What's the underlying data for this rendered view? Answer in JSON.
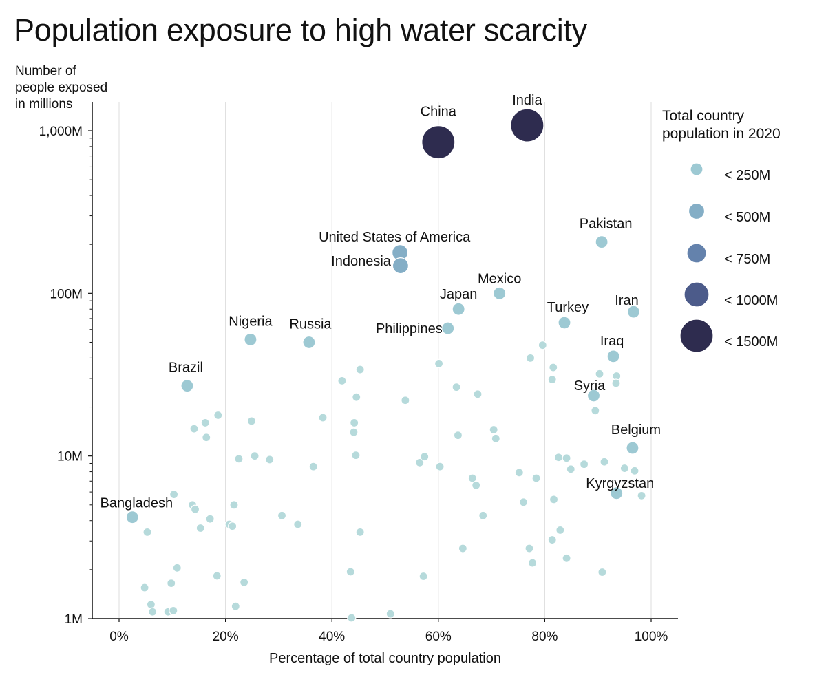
{
  "chart_data": {
    "type": "scatter",
    "title": "Population exposure to high water scarcity",
    "ylabel": [
      "Number of",
      "people exposed",
      "in millions"
    ],
    "xlabel": "Percentage of total country population",
    "x_range": [
      -5,
      105
    ],
    "y_range": [
      1,
      1600
    ],
    "y_scale": "log",
    "grid": "vertical",
    "x_ticks": [
      {
        "value": 0,
        "label": "0%"
      },
      {
        "value": 20,
        "label": "20%"
      },
      {
        "value": 40,
        "label": "40%"
      },
      {
        "value": 60,
        "label": "60%"
      },
      {
        "value": 80,
        "label": "80%"
      },
      {
        "value": 100,
        "label": "100%"
      }
    ],
    "y_ticks": [
      {
        "value": 1,
        "label": "1M"
      },
      {
        "value": 10,
        "label": "10M"
      },
      {
        "value": 100,
        "label": "100M"
      },
      {
        "value": 1000,
        "label": "1,000M"
      }
    ],
    "size_legend": {
      "title": [
        "Total country",
        "population in 2020"
      ],
      "placement": "right",
      "bins": [
        {
          "label": "< 250M",
          "color": "#9dc9d3"
        },
        {
          "label": "< 500M",
          "color": "#84aec6"
        },
        {
          "label": "< 750M",
          "color": "#6482ac"
        },
        {
          "label": "< 1000M",
          "color": "#4c5b8a"
        },
        {
          "label": "< 1500M",
          "color": "#2e2c4f"
        }
      ]
    },
    "labeled_points": [
      {
        "name": "China",
        "x": 60,
        "y": 850,
        "bin": 4
      },
      {
        "name": "India",
        "x": 76.7,
        "y": 1080,
        "bin": 4
      },
      {
        "name": "United States of America",
        "x": 52.8,
        "y": 178,
        "bin": 1
      },
      {
        "name": "Indonesia",
        "x": 52.9,
        "y": 148,
        "bin": 1
      },
      {
        "name": "Pakistan",
        "x": 90.7,
        "y": 207,
        "bin": 0
      },
      {
        "name": "Mexico",
        "x": 71.5,
        "y": 100,
        "bin": 0
      },
      {
        "name": "Japan",
        "x": 63.8,
        "y": 80,
        "bin": 0
      },
      {
        "name": "Philippines",
        "x": 61.8,
        "y": 61,
        "bin": 0
      },
      {
        "name": "Iran",
        "x": 96.7,
        "y": 77,
        "bin": 0
      },
      {
        "name": "Turkey",
        "x": 83.7,
        "y": 66,
        "bin": 0
      },
      {
        "name": "Nigeria",
        "x": 24.7,
        "y": 52,
        "bin": 0
      },
      {
        "name": "Russia",
        "x": 35.7,
        "y": 50,
        "bin": 0
      },
      {
        "name": "Iraq",
        "x": 92.9,
        "y": 41,
        "bin": 0
      },
      {
        "name": "Brazil",
        "x": 12.8,
        "y": 27,
        "bin": 0
      },
      {
        "name": "Syria",
        "x": 89.2,
        "y": 23.5,
        "bin": 0
      },
      {
        "name": "Belgium",
        "x": 96.5,
        "y": 11.2,
        "bin": 0
      },
      {
        "name": "Kyrgyzstan",
        "x": 93.5,
        "y": 5.9,
        "bin": 0
      },
      {
        "name": "Bangladesh",
        "x": 2.5,
        "y": 4.2,
        "bin": 0
      }
    ],
    "other_points": [
      {
        "x": 79.6,
        "y": 48
      },
      {
        "x": 77.3,
        "y": 40
      },
      {
        "x": 81.6,
        "y": 35
      },
      {
        "x": 81.4,
        "y": 29.5
      },
      {
        "x": 90.3,
        "y": 32
      },
      {
        "x": 93.5,
        "y": 31
      },
      {
        "x": 93.4,
        "y": 28
      },
      {
        "x": 89.5,
        "y": 19
      },
      {
        "x": 60.1,
        "y": 37
      },
      {
        "x": 45.3,
        "y": 34
      },
      {
        "x": 41.9,
        "y": 29
      },
      {
        "x": 44.6,
        "y": 23
      },
      {
        "x": 53.8,
        "y": 22
      },
      {
        "x": 63.4,
        "y": 26.5
      },
      {
        "x": 67.4,
        "y": 24
      },
      {
        "x": 18.6,
        "y": 17.8
      },
      {
        "x": 16.2,
        "y": 16
      },
      {
        "x": 14.1,
        "y": 14.7
      },
      {
        "x": 16.4,
        "y": 13
      },
      {
        "x": 24.9,
        "y": 16.4
      },
      {
        "x": 38.3,
        "y": 17.2
      },
      {
        "x": 44.2,
        "y": 16
      },
      {
        "x": 44.1,
        "y": 14
      },
      {
        "x": 63.7,
        "y": 13.4
      },
      {
        "x": 70.4,
        "y": 14.5
      },
      {
        "x": 70.8,
        "y": 12.8
      },
      {
        "x": 22.5,
        "y": 9.6
      },
      {
        "x": 25.5,
        "y": 10
      },
      {
        "x": 28.3,
        "y": 9.5
      },
      {
        "x": 36.5,
        "y": 8.6
      },
      {
        "x": 44.5,
        "y": 10.1
      },
      {
        "x": 56.5,
        "y": 9.1
      },
      {
        "x": 57.4,
        "y": 9.9
      },
      {
        "x": 60.3,
        "y": 8.6
      },
      {
        "x": 66.4,
        "y": 7.3
      },
      {
        "x": 67.1,
        "y": 6.6
      },
      {
        "x": 75.2,
        "y": 7.9
      },
      {
        "x": 78.4,
        "y": 7.3
      },
      {
        "x": 82.6,
        "y": 9.8
      },
      {
        "x": 84.1,
        "y": 9.7
      },
      {
        "x": 84.9,
        "y": 8.3
      },
      {
        "x": 87.4,
        "y": 8.9
      },
      {
        "x": 91.2,
        "y": 9.2
      },
      {
        "x": 95.0,
        "y": 8.4
      },
      {
        "x": 96.9,
        "y": 8.1
      },
      {
        "x": 98.2,
        "y": 5.7
      },
      {
        "x": 81.7,
        "y": 5.4
      },
      {
        "x": 76.0,
        "y": 5.2
      },
      {
        "x": 10.3,
        "y": 5.8
      },
      {
        "x": 13.8,
        "y": 5.0
      },
      {
        "x": 14.3,
        "y": 4.7
      },
      {
        "x": 17.1,
        "y": 4.1
      },
      {
        "x": 21.6,
        "y": 5.0
      },
      {
        "x": 30.6,
        "y": 4.3
      },
      {
        "x": 33.6,
        "y": 3.8
      },
      {
        "x": 20.7,
        "y": 3.8
      },
      {
        "x": 21.3,
        "y": 3.7
      },
      {
        "x": 15.3,
        "y": 3.6
      },
      {
        "x": 5.3,
        "y": 3.4
      },
      {
        "x": 45.3,
        "y": 3.4
      },
      {
        "x": 68.4,
        "y": 4.3
      },
      {
        "x": 82.9,
        "y": 3.5
      },
      {
        "x": 81.4,
        "y": 3.05
      },
      {
        "x": 64.6,
        "y": 2.7
      },
      {
        "x": 77.1,
        "y": 2.7
      },
      {
        "x": 84.1,
        "y": 2.35
      },
      {
        "x": 77.7,
        "y": 2.2
      },
      {
        "x": 90.8,
        "y": 1.93
      },
      {
        "x": 10.9,
        "y": 2.05
      },
      {
        "x": 18.4,
        "y": 1.83
      },
      {
        "x": 43.5,
        "y": 1.94
      },
      {
        "x": 57.2,
        "y": 1.82
      },
      {
        "x": 23.5,
        "y": 1.67
      },
      {
        "x": 9.8,
        "y": 1.65
      },
      {
        "x": 4.8,
        "y": 1.55
      },
      {
        "x": 6.0,
        "y": 1.22
      },
      {
        "x": 6.3,
        "y": 1.1
      },
      {
        "x": 9.2,
        "y": 1.1
      },
      {
        "x": 10.2,
        "y": 1.12
      },
      {
        "x": 21.9,
        "y": 1.19
      },
      {
        "x": 43.7,
        "y": 1.01
      },
      {
        "x": 51.0,
        "y": 1.07
      }
    ]
  }
}
